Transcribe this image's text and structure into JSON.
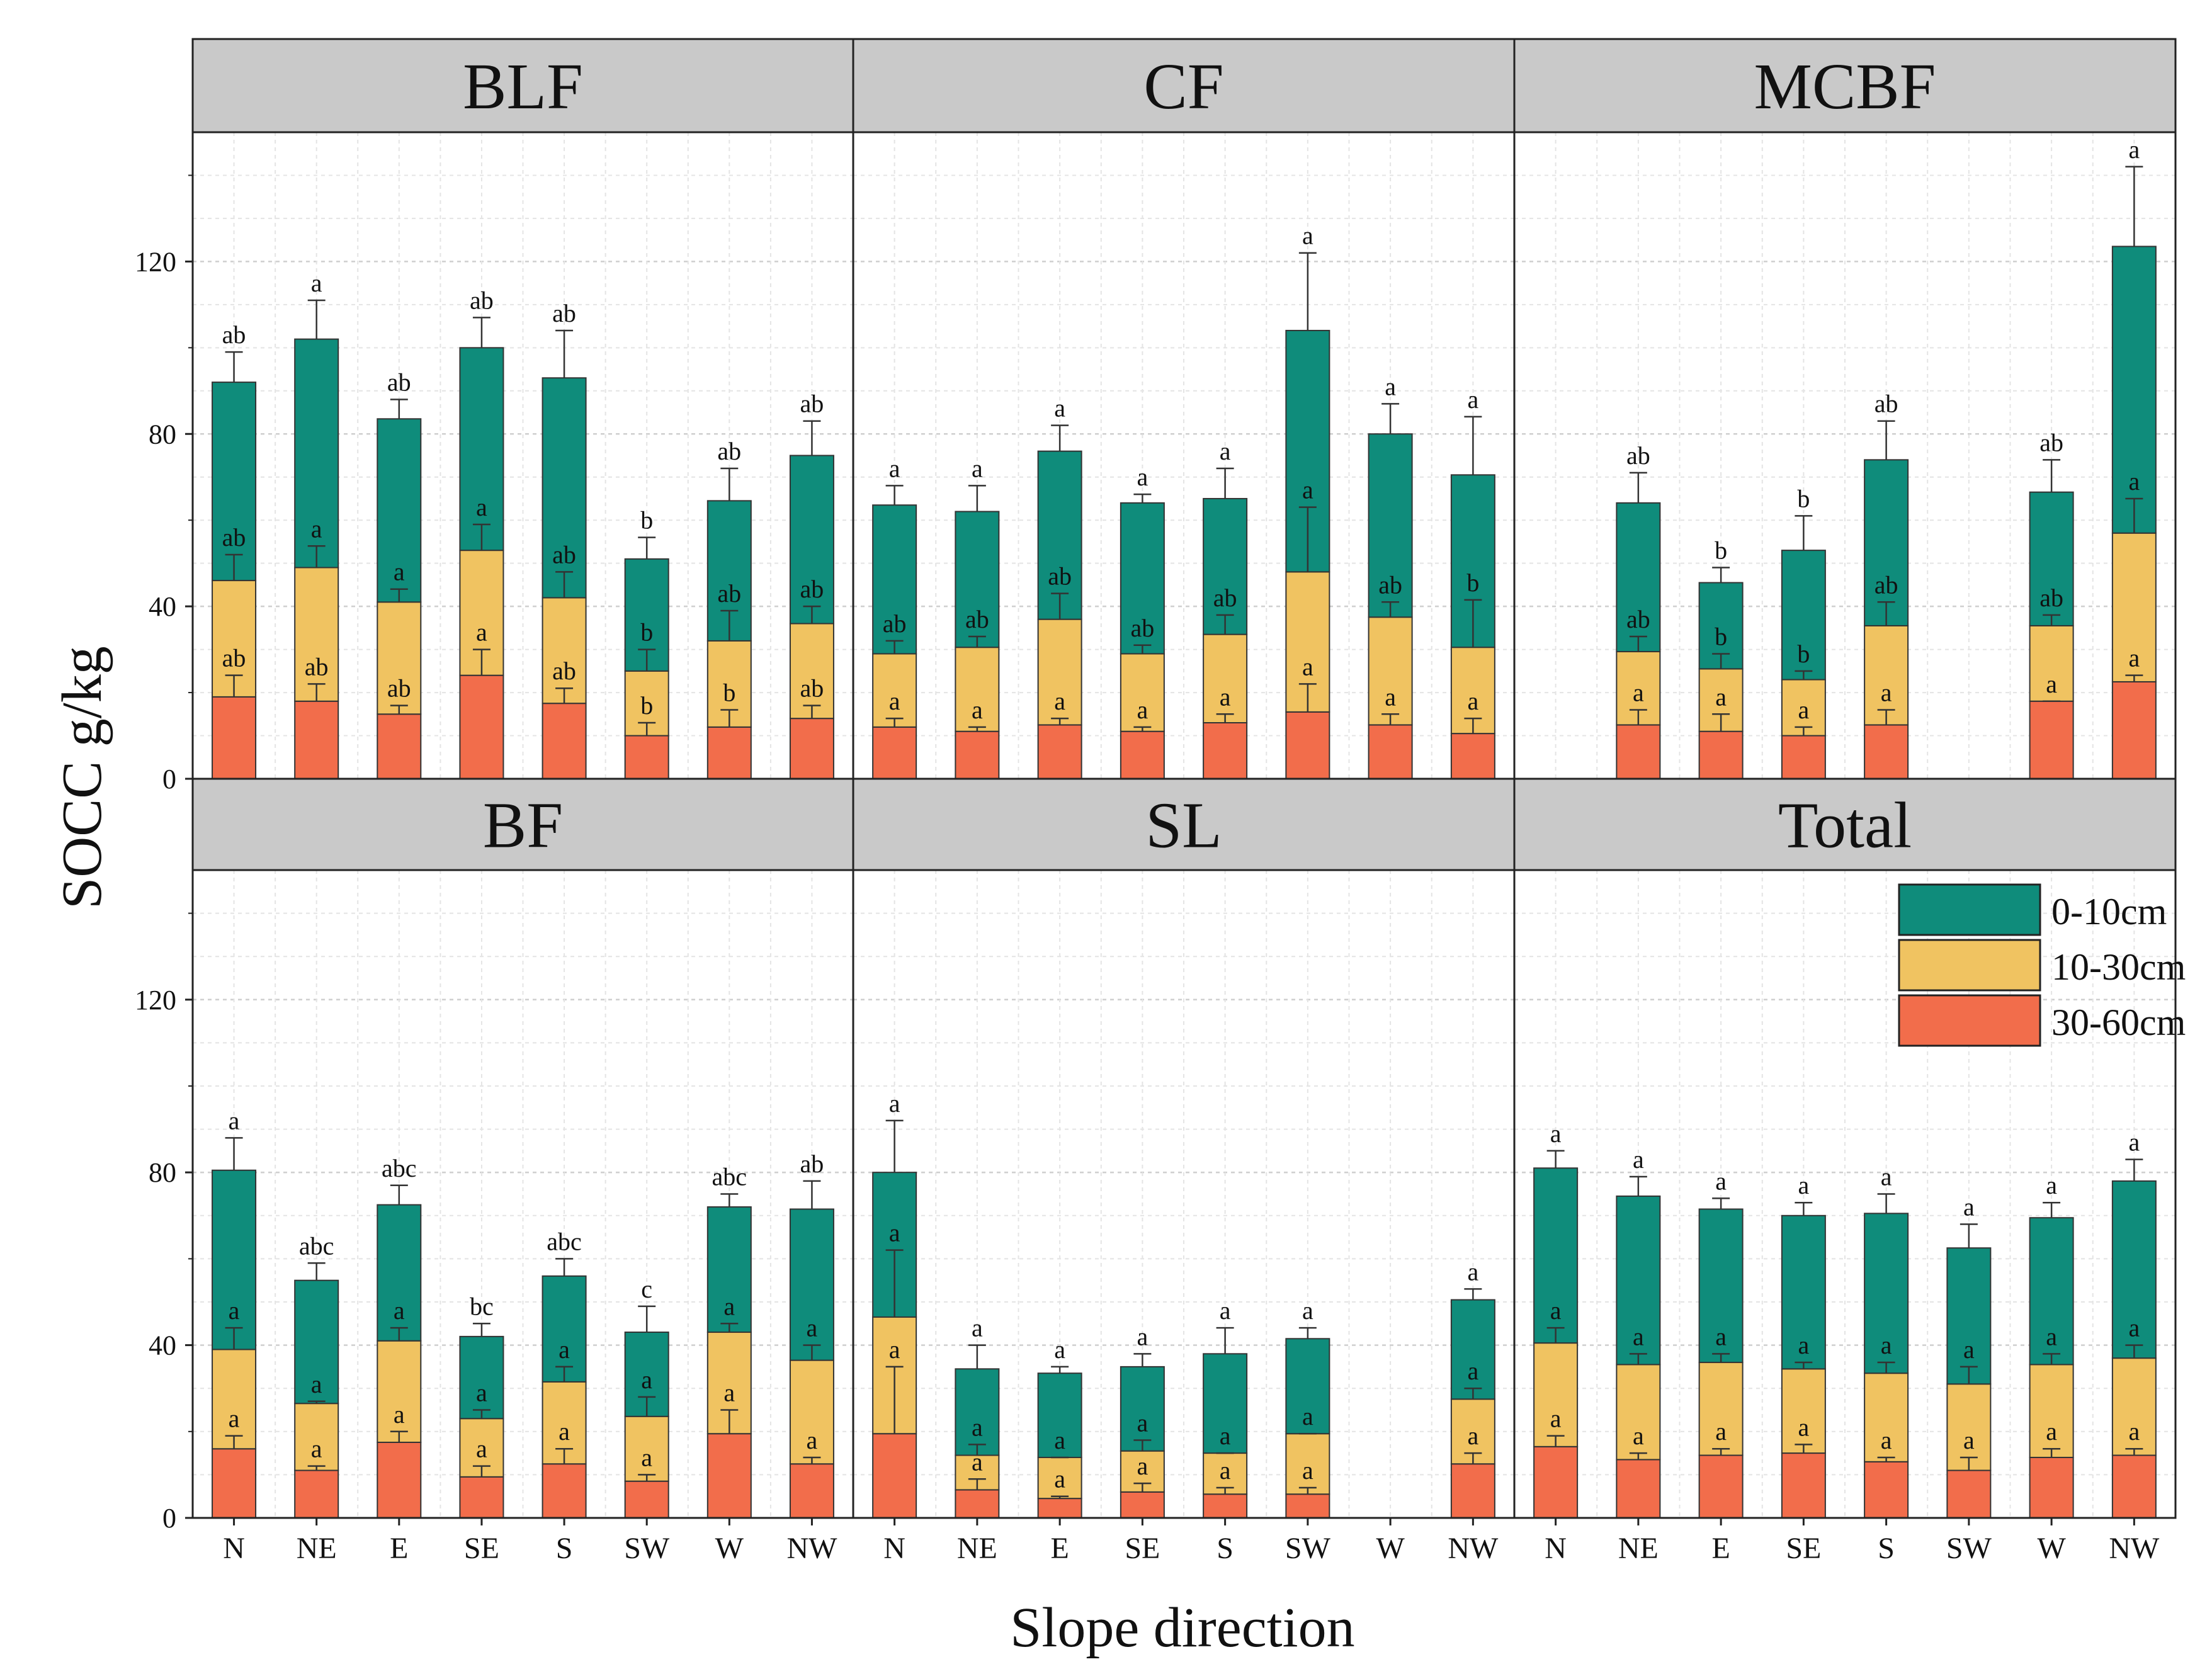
{
  "chart_data": {
    "type": "stacked-bar",
    "xlabel": "Slope direction",
    "ylabel": "SOCC g/kg",
    "ylim": [
      0,
      150
    ],
    "yticks": [
      0,
      40,
      80,
      120
    ],
    "grid": true,
    "legend_position": "top-right of Total panel",
    "categories": [
      "N",
      "NE",
      "E",
      "SE",
      "S",
      "SW",
      "W",
      "NW"
    ],
    "series_names": [
      "30-60cm",
      "10-30cm",
      "0-10cm"
    ],
    "legend": [
      {
        "name": "0-10cm",
        "color": "#0f8c7b"
      },
      {
        "name": "10-30cm",
        "color": "#f0c361"
      },
      {
        "name": "30-60cm",
        "color": "#f26d4b"
      }
    ],
    "colors": {
      "30-60cm": "#f26d4b",
      "10-30cm": "#f0c361",
      "0-10cm": "#0f8c7b",
      "strip": "#c9c9c9"
    },
    "panels": [
      {
        "title": "BLF",
        "bars": [
          {
            "cat": "N",
            "bottom": 19,
            "top": 46,
            "total": 92,
            "err": [
              24,
              52,
              99
            ],
            "letters": [
              "ab",
              "ab",
              "ab"
            ]
          },
          {
            "cat": "NE",
            "bottom": 18,
            "top": 49,
            "total": 102,
            "err": [
              22,
              54,
              111
            ],
            "letters": [
              "ab",
              "a",
              "a"
            ]
          },
          {
            "cat": "E",
            "bottom": 15,
            "top": 41,
            "total": 83.5,
            "err": [
              17,
              44,
              88
            ],
            "letters": [
              "ab",
              "a",
              "ab"
            ]
          },
          {
            "cat": "SE",
            "bottom": 24,
            "top": 53,
            "total": 100,
            "err": [
              30,
              59,
              107
            ],
            "letters": [
              "a",
              "a",
              "ab"
            ]
          },
          {
            "cat": "S",
            "bottom": 17.5,
            "top": 42,
            "total": 93,
            "err": [
              21,
              48,
              104
            ],
            "letters": [
              "ab",
              "ab",
              "ab"
            ]
          },
          {
            "cat": "SW",
            "bottom": 10,
            "top": 25,
            "total": 51,
            "err": [
              13,
              30,
              56
            ],
            "letters": [
              "b",
              "b",
              "b"
            ]
          },
          {
            "cat": "W",
            "bottom": 12,
            "top": 32,
            "total": 64.5,
            "err": [
              16,
              39,
              72
            ],
            "letters": [
              "b",
              "ab",
              "ab"
            ]
          },
          {
            "cat": "NW",
            "bottom": 14,
            "top": 36,
            "total": 75,
            "err": [
              17,
              40,
              83
            ],
            "letters": [
              "ab",
              "ab",
              "ab"
            ]
          }
        ]
      },
      {
        "title": "CF",
        "bars": [
          {
            "cat": "N",
            "bottom": 12,
            "top": 29,
            "total": 63.5,
            "err": [
              14,
              32,
              68
            ],
            "letters": [
              "a",
              "ab",
              "a"
            ]
          },
          {
            "cat": "NE",
            "bottom": 11,
            "top": 30.5,
            "total": 62,
            "err": [
              12,
              33,
              68
            ],
            "letters": [
              "a",
              "ab",
              "a"
            ]
          },
          {
            "cat": "E",
            "bottom": 12.5,
            "top": 37,
            "total": 76,
            "err": [
              14,
              43,
              82
            ],
            "letters": [
              "a",
              "ab",
              "a"
            ]
          },
          {
            "cat": "SE",
            "bottom": 11,
            "top": 29,
            "total": 64,
            "err": [
              12,
              31,
              66
            ],
            "letters": [
              "a",
              "ab",
              "a"
            ]
          },
          {
            "cat": "S",
            "bottom": 13,
            "top": 33.5,
            "total": 65,
            "err": [
              15,
              38,
              72
            ],
            "letters": [
              "a",
              "ab",
              "a"
            ]
          },
          {
            "cat": "SW",
            "bottom": 15.5,
            "top": 48,
            "total": 104,
            "err": [
              22,
              63,
              122
            ],
            "letters": [
              "a",
              "a",
              "a"
            ]
          },
          {
            "cat": "W",
            "bottom": 12.5,
            "top": 37.5,
            "total": 80,
            "err": [
              15,
              41,
              87
            ],
            "letters": [
              "a",
              "ab",
              "a"
            ]
          },
          {
            "cat": "NW",
            "bottom": 10.5,
            "top": 30.5,
            "total": 70.5,
            "err": [
              14,
              41.5,
              84
            ],
            "letters": [
              "a",
              "b",
              "a"
            ]
          }
        ]
      },
      {
        "title": "MCBF",
        "bars": [
          {
            "cat": "N",
            "bottom": null,
            "top": null,
            "total": null,
            "err": null,
            "letters": null
          },
          {
            "cat": "NE",
            "bottom": 12.5,
            "top": 29.5,
            "total": 64,
            "err": [
              16,
              33,
              71
            ],
            "letters": [
              "a",
              "ab",
              "ab"
            ]
          },
          {
            "cat": "E",
            "bottom": 11,
            "top": 25.5,
            "total": 45.5,
            "err": [
              15,
              29,
              49
            ],
            "letters": [
              "a",
              "b",
              "b"
            ]
          },
          {
            "cat": "SE",
            "bottom": 10,
            "top": 23,
            "total": 53,
            "err": [
              12,
              25,
              61
            ],
            "letters": [
              "a",
              "b",
              "b"
            ]
          },
          {
            "cat": "S",
            "bottom": 12.5,
            "top": 35.5,
            "total": 74,
            "err": [
              16,
              41,
              83
            ],
            "letters": [
              "a",
              "ab",
              "ab"
            ]
          },
          {
            "cat": "SW",
            "bottom": null,
            "top": null,
            "total": null,
            "err": null,
            "letters": null
          },
          {
            "cat": "W",
            "bottom": 18,
            "top": 35.5,
            "total": 66.5,
            "err": [
              18,
              38,
              74
            ],
            "letters": [
              "a",
              "ab",
              "ab"
            ]
          },
          {
            "cat": "NW",
            "bottom": 22.5,
            "top": 57,
            "total": 123.5,
            "err": [
              24,
              65,
              142
            ],
            "letters": [
              "a",
              "a",
              "a"
            ]
          }
        ]
      },
      {
        "title": "BF",
        "bars": [
          {
            "cat": "N",
            "bottom": 16,
            "top": 39,
            "total": 80.5,
            "err": [
              19,
              44,
              88
            ],
            "letters": [
              "a",
              "a",
              "a"
            ]
          },
          {
            "cat": "NE",
            "bottom": 11,
            "top": 26.5,
            "total": 55,
            "err": [
              12,
              27,
              59
            ],
            "letters": [
              "a",
              "a",
              "abc"
            ]
          },
          {
            "cat": "E",
            "bottom": 17.5,
            "top": 41,
            "total": 72.5,
            "err": [
              20,
              44,
              77
            ],
            "letters": [
              "a",
              "a",
              "abc"
            ]
          },
          {
            "cat": "SE",
            "bottom": 9.5,
            "top": 23,
            "total": 42,
            "err": [
              12,
              25,
              45
            ],
            "letters": [
              "a",
              "a",
              "bc"
            ]
          },
          {
            "cat": "S",
            "bottom": 12.5,
            "top": 31.5,
            "total": 56,
            "err": [
              16,
              35,
              60
            ],
            "letters": [
              "a",
              "a",
              "abc"
            ]
          },
          {
            "cat": "SW",
            "bottom": 8.5,
            "top": 23.5,
            "total": 43,
            "err": [
              10,
              28,
              49
            ],
            "letters": [
              "a",
              "a",
              "c"
            ]
          },
          {
            "cat": "W",
            "bottom": 19.5,
            "top": 43,
            "total": 72,
            "err": [
              25,
              45,
              75
            ],
            "letters": [
              "a",
              "a",
              "abc"
            ]
          },
          {
            "cat": "NW",
            "bottom": 12.5,
            "top": 36.5,
            "total": 71.5,
            "err": [
              14,
              40,
              78
            ],
            "letters": [
              "a",
              "a",
              "ab"
            ]
          }
        ]
      },
      {
        "title": "SL",
        "bars": [
          {
            "cat": "N",
            "bottom": 19.5,
            "top": 46.5,
            "total": 80,
            "err": [
              35,
              62,
              92
            ],
            "letters": [
              "a",
              "a",
              "a"
            ]
          },
          {
            "cat": "NE",
            "bottom": 6.5,
            "top": 14.5,
            "total": 34.5,
            "err": [
              9,
              17,
              40
            ],
            "letters": [
              "a",
              "a",
              "a"
            ]
          },
          {
            "cat": "E",
            "bottom": 4.5,
            "top": 14,
            "total": 33.5,
            "err": [
              5,
              14,
              35
            ],
            "letters": [
              "a",
              "a",
              "a"
            ]
          },
          {
            "cat": "SE",
            "bottom": 6,
            "top": 15.5,
            "total": 35,
            "err": [
              8,
              18,
              38
            ],
            "letters": [
              "a",
              "a",
              "a"
            ]
          },
          {
            "cat": "S",
            "bottom": 5.5,
            "top": 15,
            "total": 38,
            "err": [
              7,
              15,
              44
            ],
            "letters": [
              "a",
              "a",
              "a"
            ]
          },
          {
            "cat": "SW",
            "bottom": 5.5,
            "top": 19.5,
            "total": 41.5,
            "err": [
              7,
              19.5,
              44
            ],
            "letters": [
              "a",
              "a",
              "a"
            ]
          },
          {
            "cat": "W",
            "bottom": null,
            "top": null,
            "total": null,
            "err": null,
            "letters": null
          },
          {
            "cat": "NW",
            "bottom": 12.5,
            "top": 27.5,
            "total": 50.5,
            "err": [
              15,
              30,
              53
            ],
            "letters": [
              "a",
              "a",
              "a"
            ]
          }
        ]
      },
      {
        "title": "Total",
        "bars": [
          {
            "cat": "N",
            "bottom": 16.5,
            "top": 40.5,
            "total": 81,
            "err": [
              19,
              44,
              85
            ],
            "letters": [
              "a",
              "a",
              "a"
            ]
          },
          {
            "cat": "NE",
            "bottom": 13.5,
            "top": 35.5,
            "total": 74.5,
            "err": [
              15,
              38,
              79
            ],
            "letters": [
              "a",
              "a",
              "a"
            ]
          },
          {
            "cat": "E",
            "bottom": 14.5,
            "top": 36,
            "total": 71.5,
            "err": [
              16,
              38,
              74
            ],
            "letters": [
              "a",
              "a",
              "a"
            ]
          },
          {
            "cat": "SE",
            "bottom": 15,
            "top": 34.5,
            "total": 70,
            "err": [
              17,
              36,
              73
            ],
            "letters": [
              "a",
              "a",
              "a"
            ]
          },
          {
            "cat": "S",
            "bottom": 13,
            "top": 33.5,
            "total": 70.5,
            "err": [
              14,
              36,
              75
            ],
            "letters": [
              "a",
              "a",
              "a"
            ]
          },
          {
            "cat": "SW",
            "bottom": 11,
            "top": 31,
            "total": 62.5,
            "err": [
              14,
              35,
              68
            ],
            "letters": [
              "a",
              "a",
              "a"
            ]
          },
          {
            "cat": "W",
            "bottom": 14,
            "top": 35.5,
            "total": 69.5,
            "err": [
              16,
              38,
              73
            ],
            "letters": [
              "a",
              "a",
              "a"
            ]
          },
          {
            "cat": "NW",
            "bottom": 14.5,
            "top": 37,
            "total": 78,
            "err": [
              16,
              40,
              83
            ],
            "letters": [
              "a",
              "a",
              "a"
            ]
          }
        ]
      }
    ]
  }
}
